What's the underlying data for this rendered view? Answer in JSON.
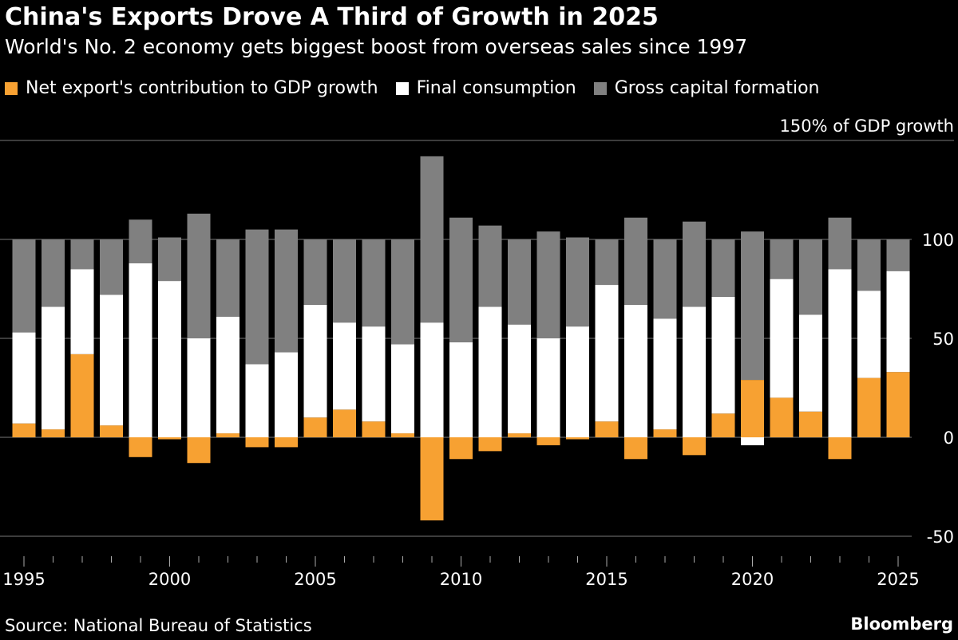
{
  "chart_data": {
    "type": "bar",
    "stacked": true,
    "title": "China's Exports Drove A Third of Growth in 2025",
    "subtitle": "World's No. 2 economy gets biggest boost from overseas sales since 1997",
    "ylabel": "150% of GDP growth",
    "ylim": [
      -60,
      150
    ],
    "yticks": [
      -50,
      0,
      50,
      100,
      150
    ],
    "ytick_labels": [
      "-50",
      "0",
      "50",
      "100",
      ""
    ],
    "grid": true,
    "legend_position": "top-left",
    "categories": [
      1995,
      1996,
      1997,
      1998,
      1999,
      2000,
      2001,
      2002,
      2003,
      2004,
      2005,
      2006,
      2007,
      2008,
      2009,
      2010,
      2011,
      2012,
      2013,
      2014,
      2015,
      2016,
      2017,
      2018,
      2019,
      2020,
      2021,
      2022,
      2023,
      2024,
      2025
    ],
    "xtick_labels": [
      "1995",
      "2000",
      "2005",
      "2010",
      "2015",
      "2020",
      "2025"
    ],
    "series": [
      {
        "name": "Net export's contribution to GDP growth",
        "color": "#f7a132",
        "values": [
          7,
          4,
          42,
          6,
          -10,
          -1,
          -13,
          2,
          -5,
          -5,
          10,
          14,
          8,
          2,
          -42,
          -11,
          -7,
          2,
          -4,
          -1,
          8,
          -11,
          4,
          -9,
          12,
          29,
          20,
          13,
          -11,
          30,
          33
        ]
      },
      {
        "name": "Final consumption",
        "color": "#ffffff",
        "values": [
          46,
          62,
          43,
          66,
          88,
          79,
          50,
          59,
          37,
          43,
          57,
          44,
          48,
          45,
          58,
          48,
          66,
          55,
          50,
          56,
          69,
          67,
          56,
          66,
          59,
          -4,
          60,
          49,
          85,
          44,
          51
        ]
      },
      {
        "name": "Gross capital formation",
        "color": "#808080",
        "values": [
          47,
          34,
          15,
          28,
          22,
          22,
          63,
          39,
          68,
          62,
          33,
          42,
          44,
          53,
          84,
          63,
          41,
          43,
          54,
          45,
          23,
          44,
          40,
          43,
          29,
          75,
          20,
          38,
          26,
          26,
          16
        ]
      }
    ]
  },
  "footer": {
    "source": "Source: National Bureau of Statistics",
    "brand": "Bloomberg"
  }
}
